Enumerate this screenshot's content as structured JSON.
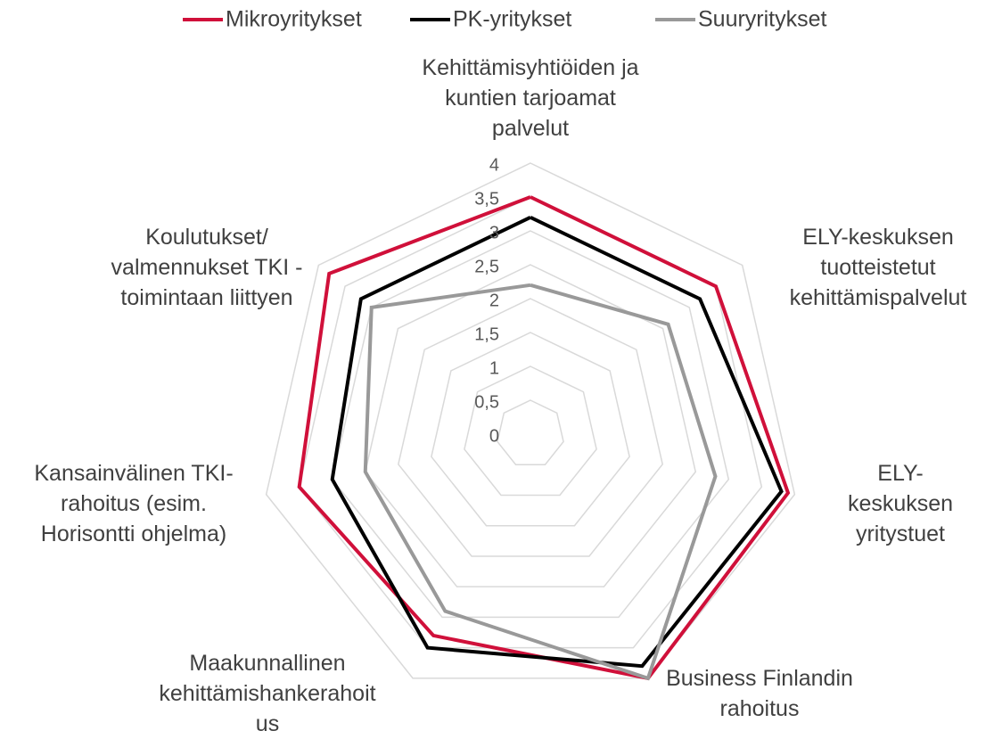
{
  "chart_data": {
    "type": "radar",
    "categories": [
      "Kehittämisyhtiöiden ja\nkuntien tarjoamat\npalvelut",
      "ELY-keskuksen\ntuotteistetut\nkehittämispalvelut",
      "ELY-keskuksen\nyritystuet",
      "Business Finlandin\nrahoitus",
      "Maakunnallinen\nkehittämishankerahoit\nus",
      "Kansainvälinen TKI-\nrahoitus (esim.\nHorisontti ohjelma)",
      "Koulutukset/\nvalmennukset TKI -\ntoimintaan liittyen"
    ],
    "series": [
      {
        "name": "Mikroyritykset",
        "color": "#d0103a",
        "values": [
          3.5,
          3.5,
          3.9,
          4.0,
          3.3,
          3.5,
          3.8
        ]
      },
      {
        "name": "PK-yritykset",
        "color": "#000000",
        "values": [
          3.2,
          3.2,
          3.8,
          3.8,
          3.5,
          3.0,
          3.2
        ]
      },
      {
        "name": "Suuryritykset",
        "color": "#999999",
        "values": [
          2.2,
          2.6,
          2.8,
          4.0,
          2.9,
          2.5,
          3.0
        ]
      }
    ],
    "ylim": [
      0,
      4
    ],
    "yticks": [
      0,
      {
        "value": 0.5,
        "label": "0,5"
      },
      1,
      {
        "value": 1.5,
        "label": "1,5"
      },
      2,
      {
        "value": 2.5,
        "label": "2,5"
      },
      3,
      {
        "value": 3.5,
        "label": "3,5"
      },
      4
    ],
    "grid": true,
    "legend": "top"
  }
}
